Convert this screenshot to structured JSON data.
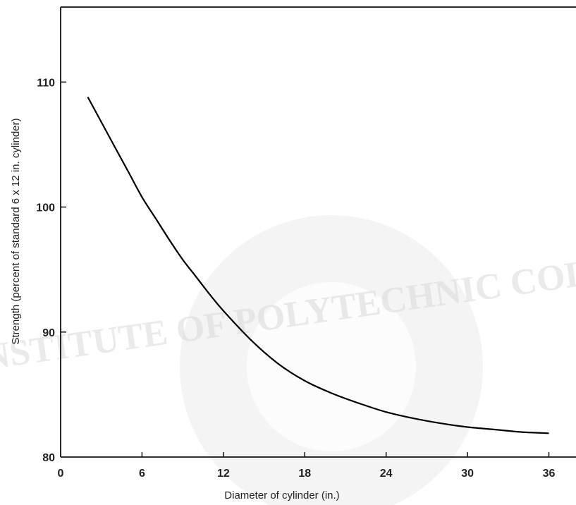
{
  "chart_data": {
    "type": "line",
    "title": "",
    "xlabel": "Diameter of cylinder (in.)",
    "ylabel": "Strength (percent of standard 6 x 12 in. cylinder)",
    "xlim": [
      0,
      38
    ],
    "ylim": [
      80,
      116
    ],
    "xticks": [
      0,
      6,
      12,
      18,
      24,
      30,
      36
    ],
    "yticks": [
      80,
      90,
      100,
      110
    ],
    "xtick_labels": [
      "0",
      "6",
      "12",
      "18",
      "24",
      "30",
      "36"
    ],
    "ytick_labels": [
      "80",
      "90",
      "100",
      "110"
    ],
    "grid": false,
    "legend": "none",
    "series": [
      {
        "x": [
          2,
          3,
          4,
          5,
          6,
          7,
          8,
          9,
          10,
          11,
          12,
          14,
          16,
          18,
          20,
          22,
          24,
          26,
          28,
          30,
          32,
          34,
          36
        ],
        "y": [
          108.8,
          106.8,
          104.8,
          102.8,
          100.8,
          99.1,
          97.4,
          95.8,
          94.4,
          93.0,
          91.7,
          89.4,
          87.5,
          86.1,
          85.1,
          84.3,
          83.6,
          83.1,
          82.7,
          82.4,
          82.2,
          82.0,
          81.9
        ]
      }
    ]
  },
  "watermark": {
    "text": "INSTITUTE OF POLYTECHNIC COLLEGE"
  }
}
